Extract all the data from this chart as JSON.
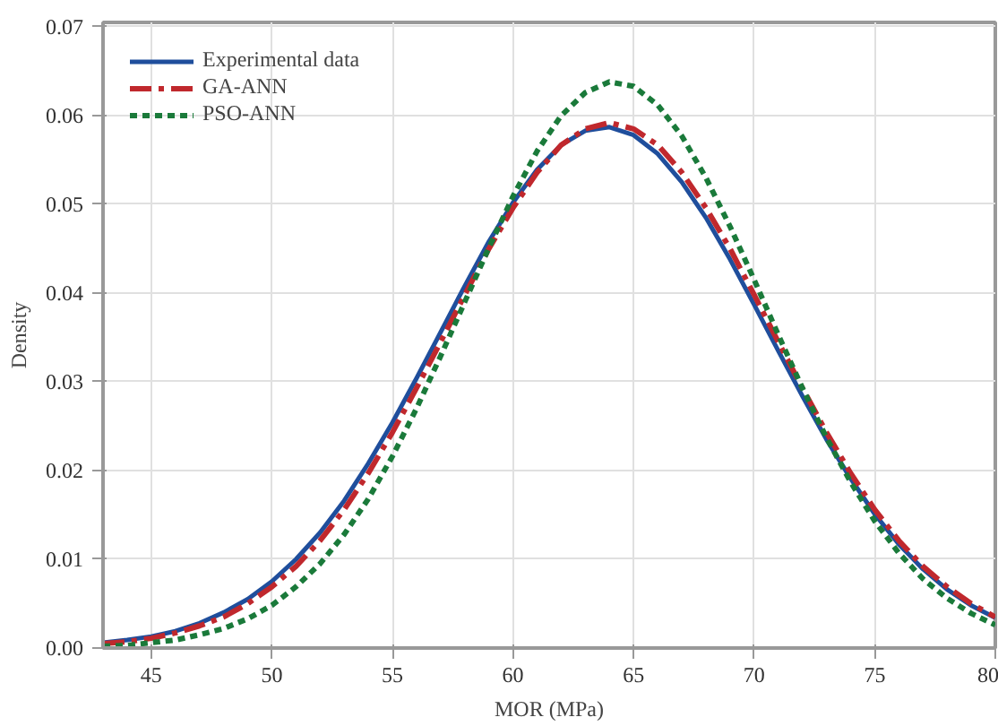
{
  "chart_data": {
    "type": "line",
    "xlabel": "MOR (MPa)",
    "ylabel": "Density",
    "x": [
      43,
      44,
      45,
      46,
      47,
      48,
      49,
      50,
      51,
      52,
      53,
      54,
      55,
      56,
      57,
      58,
      59,
      60,
      61,
      62,
      63,
      64,
      65,
      66,
      67,
      68,
      69,
      70,
      71,
      72,
      73,
      74,
      75,
      76,
      77,
      78,
      79,
      80
    ],
    "series": [
      {
        "name": "Experimental data",
        "color": "#1f4e9c",
        "line_style": "solid",
        "values": [
          0.0006,
          0.0009,
          0.0013,
          0.0019,
          0.0028,
          0.004,
          0.0055,
          0.0075,
          0.01,
          0.013,
          0.0166,
          0.0208,
          0.0254,
          0.0304,
          0.0356,
          0.0408,
          0.0458,
          0.0502,
          0.0539,
          0.0567,
          0.0583,
          0.0587,
          0.0578,
          0.0557,
          0.0525,
          0.0485,
          0.0438,
          0.0387,
          0.0335,
          0.0284,
          0.0235,
          0.0191,
          0.0151,
          0.0117,
          0.0089,
          0.0066,
          0.0048,
          0.0034
        ]
      },
      {
        "name": "GA-ANN",
        "color": "#c0282d",
        "line_style": "dashdot",
        "values": [
          0.0005,
          0.0007,
          0.0011,
          0.0017,
          0.0025,
          0.0035,
          0.005,
          0.0069,
          0.0092,
          0.0121,
          0.0156,
          0.0197,
          0.0243,
          0.0293,
          0.0345,
          0.0398,
          0.045,
          0.0496,
          0.0536,
          0.0567,
          0.0585,
          0.0592,
          0.0585,
          0.0567,
          0.0536,
          0.0496,
          0.045,
          0.0398,
          0.0345,
          0.0293,
          0.0243,
          0.0197,
          0.0156,
          0.0121,
          0.0092,
          0.0069,
          0.005,
          0.0035
        ]
      },
      {
        "name": "PSO-ANN",
        "color": "#1a7a3a",
        "line_style": "dotted",
        "values": [
          0.0002,
          0.0003,
          0.0006,
          0.0009,
          0.0015,
          0.0022,
          0.0033,
          0.0048,
          0.0069,
          0.0095,
          0.0128,
          0.0168,
          0.0216,
          0.027,
          0.0329,
          0.039,
          0.0451,
          0.0509,
          0.056,
          0.06,
          0.0626,
          0.0638,
          0.0633,
          0.0612,
          0.0577,
          0.053,
          0.0475,
          0.0415,
          0.0353,
          0.0293,
          0.0237,
          0.0187,
          0.0143,
          0.0107,
          0.0078,
          0.0056,
          0.0039,
          0.0026
        ]
      }
    ],
    "xlim": [
      43,
      80
    ],
    "xticks": [
      45,
      50,
      55,
      60,
      65,
      70,
      75,
      80
    ],
    "ylim": [
      0,
      0.0705
    ],
    "yticks": [
      {
        "value": 0,
        "label": "0.00"
      },
      0.01,
      0.02,
      0.03,
      0.04,
      0.05,
      0.06,
      0.07
    ],
    "grid": true,
    "legend": "top left"
  }
}
